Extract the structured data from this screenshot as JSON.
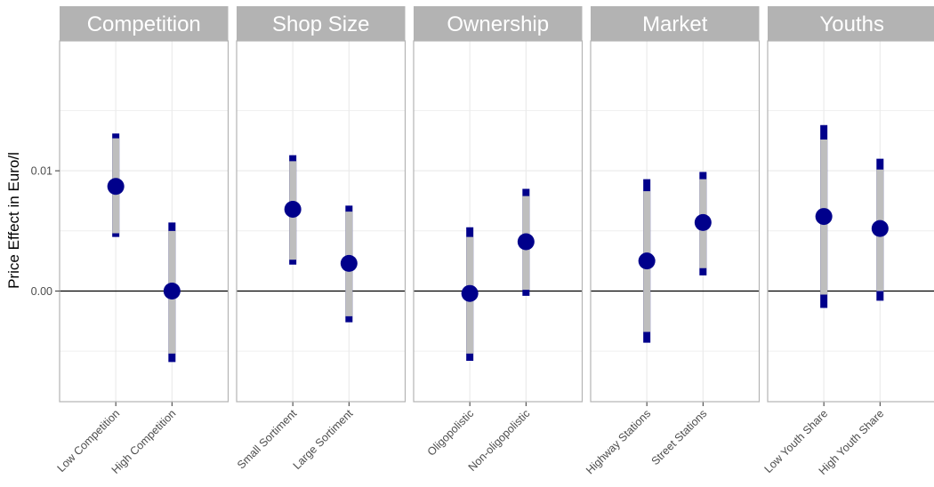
{
  "chart_data": {
    "type": "scatter",
    "ylabel": "Price Effect in Euro/l",
    "ylim": [
      -0.0092,
      0.0208
    ],
    "y_ticks": [
      {
        "value": 0.0,
        "label": "0.00"
      },
      {
        "value": 0.01,
        "label": "0.01"
      }
    ],
    "y_minor_grid": [
      -0.005,
      0.005,
      0.015
    ],
    "reference_line": 0.0,
    "grid": true,
    "colors": {
      "point": "#00008B",
      "inner_interval": "#00008B",
      "outer_interval": "#BEBEBE",
      "strip_bg": "#B3B3B3",
      "strip_text": "#FFFFFF",
      "panel_border": "#B3B3B3",
      "grid": "#EBEBEB",
      "reference_line": "#000000"
    },
    "facets": [
      {
        "title": "Competition",
        "points": [
          {
            "label": "Low Competition",
            "estimate": 0.0087,
            "outer_low": 0.0045,
            "outer_high": 0.0131,
            "inner_low": 0.0048,
            "inner_high": 0.0127
          },
          {
            "label": "High Competition",
            "estimate": 0.0,
            "outer_low": -0.0059,
            "outer_high": 0.0057,
            "inner_low": -0.0052,
            "inner_high": 0.005
          }
        ]
      },
      {
        "title": "Shop Size",
        "points": [
          {
            "label": "Small Sortiment",
            "estimate": 0.0068,
            "outer_low": 0.0022,
            "outer_high": 0.0113,
            "inner_low": 0.0026,
            "inner_high": 0.0108
          },
          {
            "label": "Large Sortiment",
            "estimate": 0.0023,
            "outer_low": -0.0026,
            "outer_high": 0.0071,
            "inner_low": -0.0021,
            "inner_high": 0.0066
          }
        ]
      },
      {
        "title": "Ownership",
        "points": [
          {
            "label": "Oligopolistic",
            "estimate": -0.0002,
            "outer_low": -0.0058,
            "outer_high": 0.0053,
            "inner_low": -0.0052,
            "inner_high": 0.0045
          },
          {
            "label": "Non-oligopolistic",
            "estimate": 0.0041,
            "outer_low": -0.0004,
            "outer_high": 0.0085,
            "inner_low": 0.0001,
            "inner_high": 0.0079
          }
        ]
      },
      {
        "title": "Market",
        "points": [
          {
            "label": "Highway Stations",
            "estimate": 0.0025,
            "outer_low": -0.0043,
            "outer_high": 0.0093,
            "inner_low": -0.0034,
            "inner_high": 0.0083
          },
          {
            "label": "Street Stations",
            "estimate": 0.0057,
            "outer_low": 0.0013,
            "outer_high": 0.0099,
            "inner_low": 0.0019,
            "inner_high": 0.0093
          }
        ]
      },
      {
        "title": "Youths",
        "points": [
          {
            "label": "Low Youth Share",
            "estimate": 0.0062,
            "outer_low": -0.0014,
            "outer_high": 0.0138,
            "inner_low": -0.0003,
            "inner_high": 0.0126
          },
          {
            "label": "High Youth Share",
            "estimate": 0.0052,
            "outer_low": -0.0008,
            "outer_high": 0.011,
            "inner_low": 0.0,
            "inner_high": 0.0101
          }
        ]
      }
    ]
  }
}
